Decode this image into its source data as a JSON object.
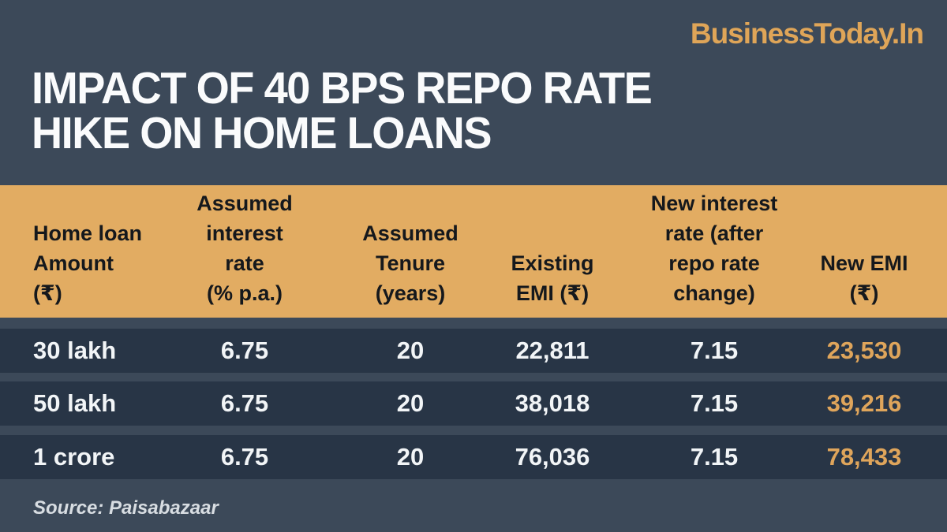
{
  "brand": {
    "logo": "BusinessToday.In"
  },
  "title": {
    "line1": "IMPACT OF 40 BPS REPO RATE",
    "line2": "HIKE ON HOME LOANS"
  },
  "source": {
    "text": "Source: Paisabazaar"
  },
  "colors": {
    "background": "#3c4959",
    "row_background": "#283546",
    "header_band": "#e2ac62",
    "accent_gold": "#dfa55b",
    "text_white": "#f2f5f7",
    "header_text": "#15181c",
    "source_text": "#d8dde2"
  },
  "chart_data": {
    "type": "table",
    "title": "IMPACT OF 40 BPS REPO RATE HIKE ON HOME LOANS",
    "source": "Source: Paisabazaar",
    "columns": [
      "Home loan\nAmount\n(₹)",
      "Assumed\ninterest\nrate\n(% p.a.)",
      "Assumed\nTenure\n(years)",
      "Existing\nEMI (₹)",
      "New interest\nrate (after\nrepo rate\nchange)",
      "New EMI\n(₹)"
    ],
    "rows": [
      [
        "30 lakh",
        "6.75",
        "20",
        "22,811",
        "7.15",
        "23,530"
      ],
      [
        "50 lakh",
        "6.75",
        "20",
        "38,018",
        "7.15",
        "39,216"
      ],
      [
        "1 crore",
        "6.75",
        "20",
        "76,036",
        "7.15",
        "78,433"
      ]
    ]
  }
}
